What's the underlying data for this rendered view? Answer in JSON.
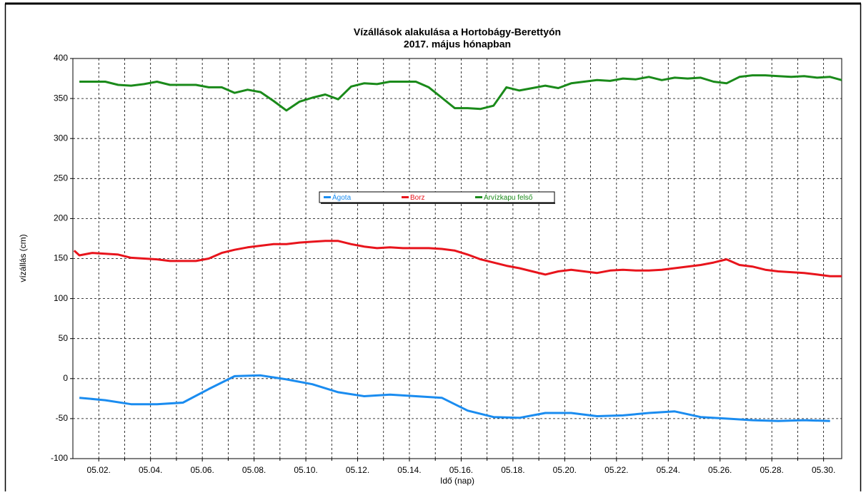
{
  "chart_data": {
    "type": "line",
    "title": [
      "Vízállások alakulása a Hortobágy-Berettyón",
      "2017. május hónapban"
    ],
    "xlabel": "Idő (nap)",
    "ylabel": "vízállás (cm)",
    "xlim": [
      1,
      30.7
    ],
    "ylim": [
      -100,
      400
    ],
    "xticks": [
      {
        "value": 2,
        "label": "05.02."
      },
      {
        "value": 4,
        "label": "05.04."
      },
      {
        "value": 6,
        "label": "05.06."
      },
      {
        "value": 8,
        "label": "05.08."
      },
      {
        "value": 10,
        "label": "05.10."
      },
      {
        "value": 12,
        "label": "05.12."
      },
      {
        "value": 14,
        "label": "05.14."
      },
      {
        "value": 16,
        "label": "05.16."
      },
      {
        "value": 18,
        "label": "05.18."
      },
      {
        "value": 20,
        "label": "05.20."
      },
      {
        "value": 22,
        "label": "05.22."
      },
      {
        "value": 24,
        "label": "05.24."
      },
      {
        "value": 26,
        "label": "05.26."
      },
      {
        "value": 28,
        "label": "05.28."
      },
      {
        "value": 30,
        "label": "05.30."
      }
    ],
    "xminor_ticks": [
      3,
      5,
      7,
      9,
      11,
      13,
      15,
      17,
      19,
      21,
      23,
      25,
      27,
      29
    ],
    "yticks": [
      -100,
      -50,
      0,
      50,
      100,
      150,
      200,
      250,
      300,
      350,
      400
    ],
    "grid": true,
    "legend": "center",
    "series": [
      {
        "name": "Ágota",
        "color": "#1a8cf0",
        "x": [
          1.25,
          2.25,
          3.25,
          4.25,
          5.25,
          6.25,
          7.25,
          8.25,
          9.25,
          10.25,
          11.25,
          12.25,
          13.25,
          14.25,
          15.25,
          16.25,
          17.25,
          18.25,
          19.25,
          20.25,
          21.25,
          22.25,
          23.25,
          24.25,
          25.25,
          26.25,
          27.25,
          28.25,
          29.25,
          30.25
        ],
        "values": [
          -24,
          -27,
          -32,
          -32,
          -30,
          -13,
          3,
          4,
          -1,
          -7,
          -17,
          -22,
          -20,
          -22,
          -24,
          -40,
          -48,
          -49,
          -43,
          -43,
          -47,
          -46,
          -43,
          -41,
          -48,
          -50,
          -52,
          -53,
          -52,
          -53
        ]
      },
      {
        "name": "Borz",
        "color": "#e8141c",
        "x": [
          1.05,
          1.25,
          1.75,
          2.25,
          2.75,
          3.25,
          3.75,
          4.25,
          4.75,
          5.25,
          5.75,
          6.25,
          6.75,
          7.25,
          7.75,
          8.25,
          8.75,
          9.25,
          9.75,
          10.25,
          10.75,
          11.25,
          11.75,
          12.25,
          12.75,
          13.25,
          13.75,
          14.25,
          14.75,
          15.25,
          15.75,
          16.25,
          16.75,
          17.25,
          17.75,
          18.25,
          18.75,
          19.25,
          19.75,
          20.25,
          20.75,
          21.25,
          21.75,
          22.25,
          22.75,
          23.25,
          23.75,
          24.25,
          24.75,
          25.25,
          25.75,
          26.25,
          26.75,
          27.25,
          27.75,
          28.25,
          28.75,
          29.25,
          29.75,
          30.25,
          30.7
        ],
        "values": [
          160,
          154,
          157,
          156,
          155,
          151,
          150,
          149,
          147,
          147,
          147,
          150,
          157,
          161,
          164,
          166,
          168,
          168,
          170,
          171,
          172,
          172,
          168,
          165,
          163,
          164,
          163,
          163,
          163,
          162,
          160,
          155,
          149,
          145,
          141,
          138,
          134,
          130,
          134,
          136,
          134,
          132,
          135,
          136,
          135,
          135,
          136,
          138,
          140,
          142,
          145,
          149,
          142,
          140,
          136,
          134,
          133,
          132,
          130,
          128,
          128
        ]
      },
      {
        "name": "Árvízkapu felső",
        "color": "#1a8a1a",
        "x": [
          1.25,
          2.25,
          2.75,
          3.25,
          3.75,
          4.25,
          4.75,
          5.25,
          5.75,
          6.25,
          6.75,
          7.25,
          7.75,
          8.25,
          8.75,
          9.25,
          9.75,
          10.25,
          10.75,
          11.25,
          11.75,
          12.25,
          12.75,
          13.25,
          14.25,
          14.75,
          15.25,
          15.75,
          16.25,
          16.75,
          17.25,
          17.75,
          18.25,
          18.75,
          19.25,
          19.75,
          20.25,
          20.75,
          21.25,
          21.75,
          22.25,
          22.75,
          23.25,
          23.75,
          24.25,
          24.75,
          25.25,
          25.75,
          26.25,
          26.75,
          27.25,
          27.75,
          28.25,
          28.75,
          29.25,
          29.75,
          30.25,
          30.7
        ],
        "values": [
          371,
          371,
          367,
          366,
          368,
          371,
          367,
          367,
          367,
          364,
          364,
          357,
          361,
          358,
          347,
          335,
          346,
          351,
          355,
          349,
          365,
          369,
          368,
          371,
          371,
          364,
          351,
          338,
          338,
          337,
          341,
          364,
          360,
          363,
          366,
          363,
          369,
          371,
          373,
          372,
          375,
          374,
          377,
          373,
          376,
          375,
          376,
          371,
          369,
          377,
          379,
          379,
          378,
          377,
          378,
          376,
          377,
          373
        ]
      }
    ]
  }
}
